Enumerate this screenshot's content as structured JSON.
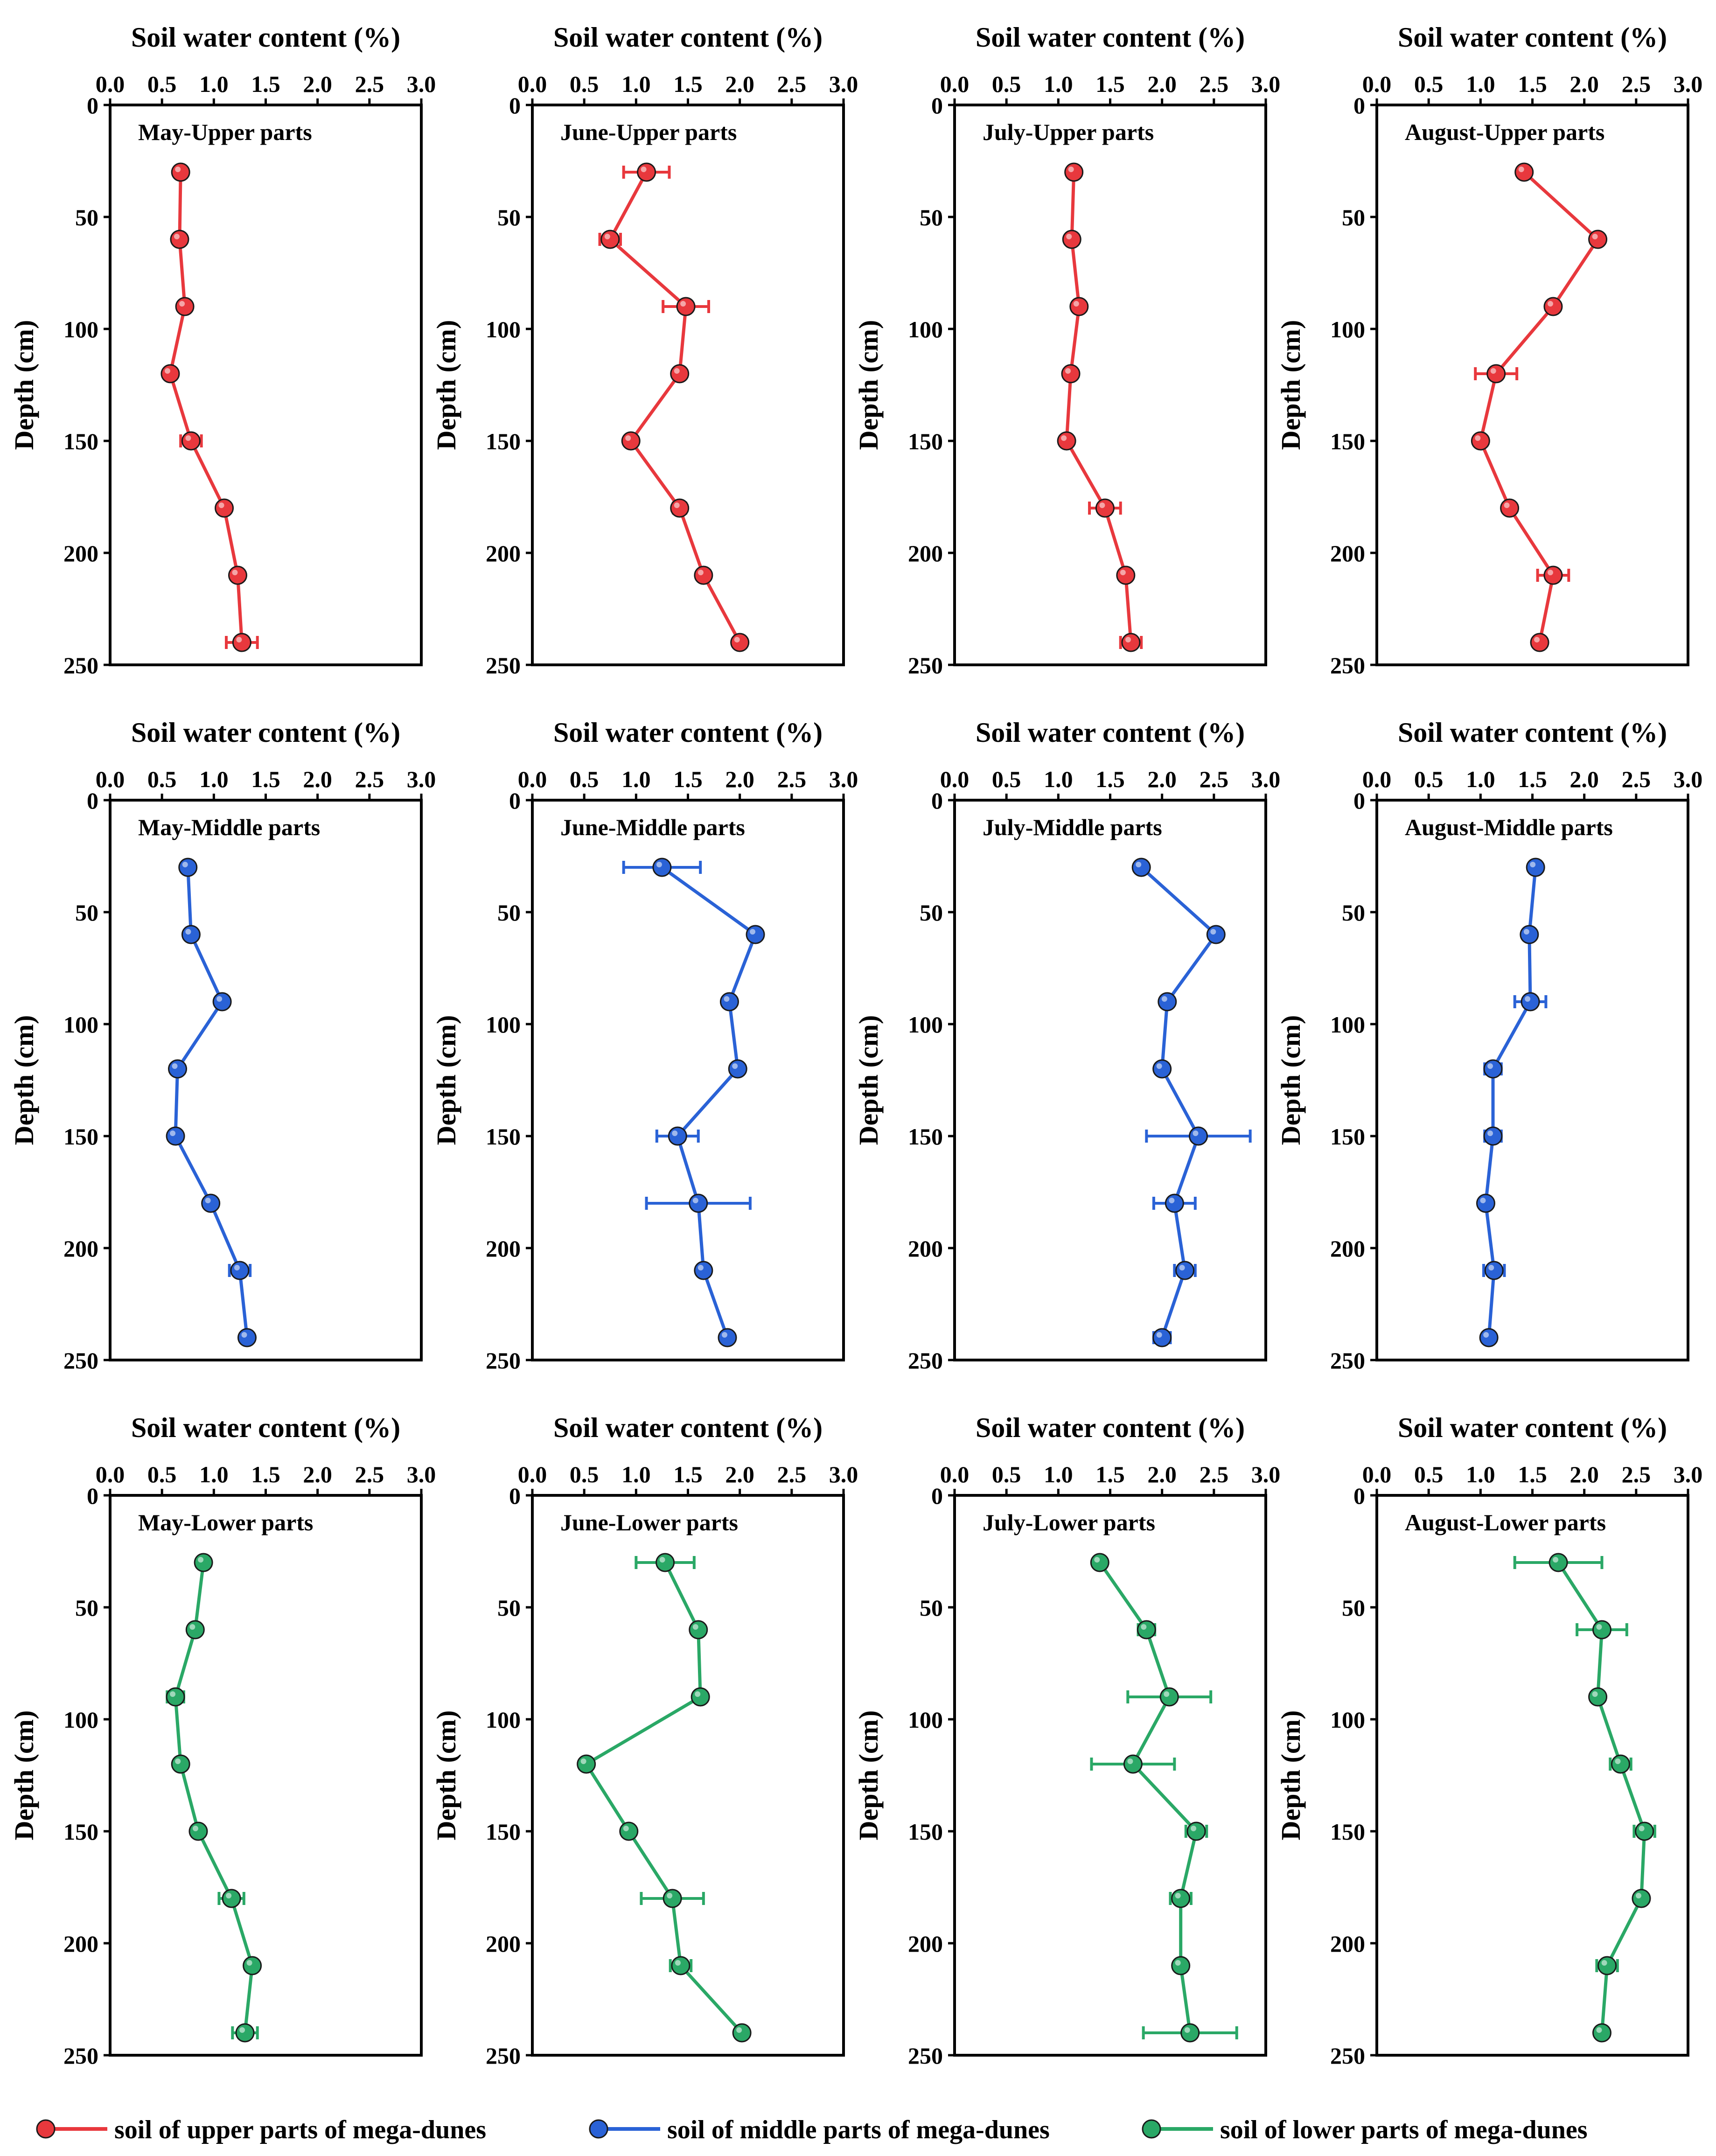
{
  "series_colors": {
    "upper": "#e8383d",
    "middle": "#2a62d6",
    "lower": "#2aa866"
  },
  "legend": [
    {
      "key": "upper",
      "label": "soil of upper parts of mega-dunes"
    },
    {
      "key": "middle",
      "label": "soil of middle parts of mega-dunes"
    },
    {
      "key": "lower",
      "label": "soil of lower parts of mega-dunes"
    }
  ],
  "chart_data": [
    {
      "type": "line",
      "title": "May-Upper parts",
      "series": "upper",
      "xlabel": "Soil water content (%)",
      "ylabel": "Depth (cm)",
      "xlim": [
        0,
        3.0
      ],
      "ylim": [
        0,
        250
      ],
      "xticks": [
        "0.0",
        "0.5",
        "1.0",
        "1.5",
        "2.0",
        "2.5",
        "3.0"
      ],
      "yticks": [
        "0",
        "50",
        "100",
        "150",
        "200",
        "250"
      ],
      "depth": [
        30,
        60,
        90,
        120,
        150,
        180,
        210,
        240
      ],
      "values": [
        0.68,
        0.67,
        0.72,
        0.58,
        0.78,
        1.1,
        1.23,
        1.27
      ],
      "errors": [
        0.02,
        0.02,
        0.04,
        0.03,
        0.1,
        0.03,
        0.04,
        0.15
      ]
    },
    {
      "type": "line",
      "title": "June-Upper parts",
      "series": "upper",
      "xlabel": "Soil water content (%)",
      "ylabel": "Depth (cm)",
      "xlim": [
        0,
        3.0
      ],
      "ylim": [
        0,
        250
      ],
      "xticks": [
        "0.0",
        "0.5",
        "1.0",
        "1.5",
        "2.0",
        "2.5",
        "3.0"
      ],
      "yticks": [
        "0",
        "50",
        "100",
        "150",
        "200",
        "250"
      ],
      "depth": [
        30,
        60,
        90,
        120,
        150,
        180,
        210,
        240
      ],
      "values": [
        1.1,
        0.75,
        1.48,
        1.42,
        0.95,
        1.42,
        1.65,
        2.0
      ],
      "errors": [
        0.22,
        0.1,
        0.22,
        0.04,
        0.04,
        0.06,
        0.04,
        0.04
      ]
    },
    {
      "type": "line",
      "title": "July-Upper parts",
      "series": "upper",
      "xlabel": "Soil water content (%)",
      "ylabel": "Depth (cm)",
      "xlim": [
        0,
        3.0
      ],
      "ylim": [
        0,
        250
      ],
      "xticks": [
        "0.0",
        "0.5",
        "1.0",
        "1.5",
        "2.0",
        "2.5",
        "3.0"
      ],
      "yticks": [
        "0",
        "50",
        "100",
        "150",
        "200",
        "250"
      ],
      "depth": [
        30,
        60,
        90,
        120,
        150,
        180,
        210,
        240
      ],
      "values": [
        1.15,
        1.13,
        1.2,
        1.12,
        1.08,
        1.45,
        1.65,
        1.7
      ],
      "errors": [
        0.02,
        0.02,
        0.04,
        0.02,
        0.03,
        0.15,
        0.05,
        0.1
      ]
    },
    {
      "type": "line",
      "title": "August-Upper parts",
      "series": "upper",
      "xlabel": "Soil water content (%)",
      "ylabel": "Depth (cm)",
      "xlim": [
        0,
        3.0
      ],
      "ylim": [
        0,
        250
      ],
      "xticks": [
        "0.0",
        "0.5",
        "1.0",
        "1.5",
        "2.0",
        "2.5",
        "3.0"
      ],
      "yticks": [
        "0",
        "50",
        "100",
        "150",
        "200",
        "250"
      ],
      "depth": [
        30,
        60,
        90,
        120,
        150,
        180,
        210,
        240
      ],
      "values": [
        1.42,
        2.13,
        1.7,
        1.15,
        1.0,
        1.28,
        1.7,
        1.57
      ],
      "errors": [
        0.02,
        0.05,
        0.03,
        0.2,
        0.03,
        0.03,
        0.15,
        0.03
      ]
    },
    {
      "type": "line",
      "title": "May-Middle parts",
      "series": "middle",
      "xlabel": "Soil water content (%)",
      "ylabel": "Depth (cm)",
      "xlim": [
        0,
        3.0
      ],
      "ylim": [
        0,
        250
      ],
      "xticks": [
        "0.0",
        "0.5",
        "1.0",
        "1.5",
        "2.0",
        "2.5",
        "3.0"
      ],
      "yticks": [
        "0",
        "50",
        "100",
        "150",
        "200",
        "250"
      ],
      "depth": [
        30,
        60,
        90,
        120,
        150,
        180,
        210,
        240
      ],
      "values": [
        0.75,
        0.78,
        1.08,
        0.65,
        0.63,
        0.97,
        1.25,
        1.32
      ],
      "errors": [
        0.03,
        0.03,
        0.03,
        0.04,
        0.03,
        0.03,
        0.1,
        0.03
      ]
    },
    {
      "type": "line",
      "title": "June-Middle parts",
      "series": "middle",
      "xlabel": "Soil water content (%)",
      "ylabel": "Depth (cm)",
      "xlim": [
        0,
        3.0
      ],
      "ylim": [
        0,
        250
      ],
      "xticks": [
        "0.0",
        "0.5",
        "1.0",
        "1.5",
        "2.0",
        "2.5",
        "3.0"
      ],
      "yticks": [
        "0",
        "50",
        "100",
        "150",
        "200",
        "250"
      ],
      "depth": [
        30,
        60,
        90,
        120,
        150,
        180,
        210,
        240
      ],
      "values": [
        1.25,
        2.15,
        1.9,
        1.98,
        1.4,
        1.6,
        1.65,
        1.88
      ],
      "errors": [
        0.37,
        0.04,
        0.04,
        0.04,
        0.2,
        0.5,
        0.04,
        0.05
      ]
    },
    {
      "type": "line",
      "title": "July-Middle parts",
      "series": "middle",
      "xlabel": "Soil water content (%)",
      "ylabel": "Depth (cm)",
      "xlim": [
        0,
        3.0
      ],
      "ylim": [
        0,
        250
      ],
      "xticks": [
        "0.0",
        "0.5",
        "1.0",
        "1.5",
        "2.0",
        "2.5",
        "3.0"
      ],
      "yticks": [
        "0",
        "50",
        "100",
        "150",
        "200",
        "250"
      ],
      "depth": [
        30,
        60,
        90,
        120,
        150,
        180,
        210,
        240
      ],
      "values": [
        1.8,
        2.52,
        2.05,
        2.0,
        2.35,
        2.12,
        2.22,
        2.0
      ],
      "errors": [
        0.03,
        0.04,
        0.04,
        0.03,
        0.5,
        0.2,
        0.1,
        0.08
      ]
    },
    {
      "type": "line",
      "title": "August-Middle parts",
      "series": "middle",
      "xlabel": "Soil water content (%)",
      "ylabel": "Depth (cm)",
      "xlim": [
        0,
        3.0
      ],
      "ylim": [
        0,
        250
      ],
      "xticks": [
        "0.0",
        "0.5",
        "1.0",
        "1.5",
        "2.0",
        "2.5",
        "3.0"
      ],
      "yticks": [
        "0",
        "50",
        "100",
        "150",
        "200",
        "250"
      ],
      "depth": [
        30,
        60,
        90,
        120,
        150,
        180,
        210,
        240
      ],
      "values": [
        1.53,
        1.47,
        1.48,
        1.12,
        1.12,
        1.05,
        1.13,
        1.08
      ],
      "errors": [
        0.03,
        0.03,
        0.15,
        0.08,
        0.08,
        0.03,
        0.1,
        0.03
      ]
    },
    {
      "type": "line",
      "title": "May-Lower parts",
      "series": "lower",
      "xlabel": "Soil water content (%)",
      "ylabel": "Depth (cm)",
      "xlim": [
        0,
        3.0
      ],
      "ylim": [
        0,
        250
      ],
      "xticks": [
        "0.0",
        "0.5",
        "1.0",
        "1.5",
        "2.0",
        "2.5",
        "3.0"
      ],
      "yticks": [
        "0",
        "50",
        "100",
        "150",
        "200",
        "250"
      ],
      "depth": [
        30,
        60,
        90,
        120,
        150,
        180,
        210,
        240
      ],
      "values": [
        0.9,
        0.82,
        0.63,
        0.68,
        0.85,
        1.17,
        1.37,
        1.3
      ],
      "errors": [
        0.05,
        0.03,
        0.08,
        0.05,
        0.03,
        0.12,
        0.03,
        0.12
      ]
    },
    {
      "type": "line",
      "title": "June-Lower parts",
      "series": "lower",
      "xlabel": "Soil water content (%)",
      "ylabel": "Depth (cm)",
      "xlim": [
        0,
        3.0
      ],
      "ylim": [
        0,
        250
      ],
      "xticks": [
        "0.0",
        "0.5",
        "1.0",
        "1.5",
        "2.0",
        "2.5",
        "3.0"
      ],
      "yticks": [
        "0",
        "50",
        "100",
        "150",
        "200",
        "250"
      ],
      "depth": [
        30,
        60,
        90,
        120,
        150,
        180,
        210,
        240
      ],
      "values": [
        1.28,
        1.6,
        1.62,
        0.52,
        0.93,
        1.35,
        1.43,
        2.02
      ],
      "errors": [
        0.28,
        0.04,
        0.04,
        0.04,
        0.04,
        0.3,
        0.1,
        0.03
      ]
    },
    {
      "type": "line",
      "title": "July-Lower parts",
      "series": "lower",
      "xlabel": "Soil water content (%)",
      "ylabel": "Depth (cm)",
      "xlim": [
        0,
        3.0
      ],
      "ylim": [
        0,
        250
      ],
      "xticks": [
        "0.0",
        "0.5",
        "1.0",
        "1.5",
        "2.0",
        "2.5",
        "3.0"
      ],
      "yticks": [
        "0",
        "50",
        "100",
        "150",
        "200",
        "250"
      ],
      "depth": [
        30,
        60,
        90,
        120,
        150,
        180,
        210,
        240
      ],
      "values": [
        1.4,
        1.85,
        2.07,
        1.72,
        2.33,
        2.18,
        2.18,
        2.27
      ],
      "errors": [
        0.04,
        0.08,
        0.4,
        0.4,
        0.1,
        0.1,
        0.04,
        0.45
      ]
    },
    {
      "type": "line",
      "title": "August-Lower parts",
      "series": "lower",
      "xlabel": "Soil water content (%)",
      "ylabel": "Depth (cm)",
      "xlim": [
        0,
        3.0
      ],
      "ylim": [
        0,
        250
      ],
      "xticks": [
        "0.0",
        "0.5",
        "1.0",
        "1.5",
        "2.0",
        "2.5",
        "3.0"
      ],
      "yticks": [
        "0",
        "50",
        "100",
        "150",
        "200",
        "250"
      ],
      "depth": [
        30,
        60,
        90,
        120,
        150,
        180,
        210,
        240
      ],
      "values": [
        1.75,
        2.17,
        2.13,
        2.35,
        2.58,
        2.55,
        2.22,
        2.17
      ],
      "errors": [
        0.42,
        0.24,
        0.03,
        0.1,
        0.1,
        0.04,
        0.1,
        0.04
      ]
    }
  ]
}
